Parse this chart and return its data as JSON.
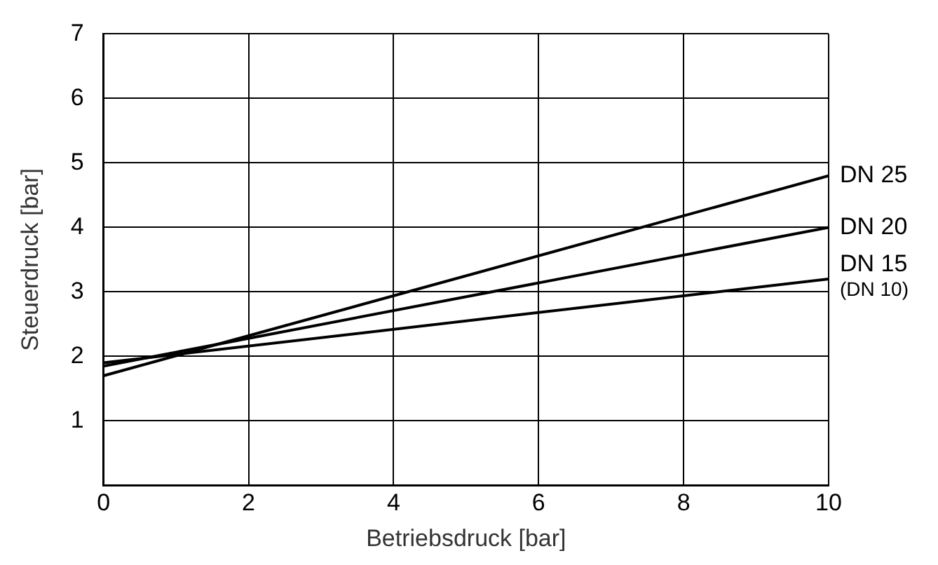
{
  "chart_data": {
    "type": "line",
    "xlabel": "Betriebsdruck [bar]",
    "ylabel": "Steuerdruck [bar]",
    "x": [
      0,
      10
    ],
    "series": [
      {
        "name": "DN 25",
        "color": "#000000",
        "values": [
          1.7,
          4.8
        ]
      },
      {
        "name": "DN 20",
        "color": "#000000",
        "values": [
          1.85,
          4.0
        ]
      },
      {
        "name": "DN 15",
        "color": "#000000",
        "values": [
          1.9,
          3.2
        ]
      }
    ],
    "annotations": [
      {
        "text": "(DN 10)",
        "x": 10,
        "y": 3.2
      }
    ],
    "xlim": [
      0,
      10
    ],
    "xticks": [
      0,
      2,
      4,
      6,
      8,
      10
    ],
    "ylim": [
      0,
      7
    ],
    "yticks": [
      {
        "value": 0,
        "label": null
      },
      1,
      2,
      3,
      4,
      5,
      6,
      7
    ],
    "grid": true,
    "legend": false,
    "marker": "none",
    "line_style": "solid"
  }
}
